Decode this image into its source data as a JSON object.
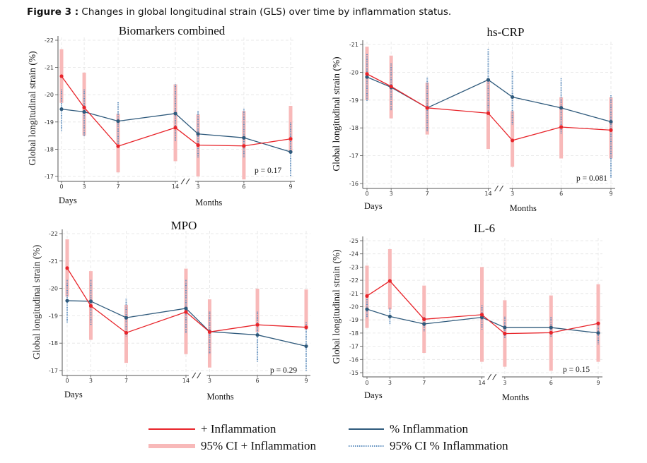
{
  "figure_caption": {
    "label": "Figure 3 :",
    "text": " Changes in global longitudinal strain (GLS) over time by inflammation status."
  },
  "colors": {
    "inflammation_line": "#e8242a",
    "inflammation_ci": "#f8b9b9",
    "no_inflammation_line": "#2f5a7c",
    "no_inflammation_ci": "#5f8fbf",
    "grid": "#e4e4e4"
  },
  "legend": {
    "items": [
      {
        "label": "+ Inflammation",
        "style": "solid-red-line"
      },
      {
        "label": "95% CI + Inflammation",
        "style": "thick-pink-band"
      },
      {
        "label": "% Inflammation",
        "style": "solid-blue-line"
      },
      {
        "label": "95% CI % Inflammation",
        "style": "dotted-blue-line"
      }
    ]
  },
  "chart_data": [
    {
      "type": "line",
      "title": "Biomarkers combined",
      "ylabel": "Global longitudinal strain (%)",
      "ylim": [
        -22,
        -17
      ],
      "yticks": [
        -22,
        -21,
        -20,
        -19,
        -18,
        -17
      ],
      "y_inverted": true,
      "grid": true,
      "xtick_labels": [
        "0",
        "3",
        "7",
        "14",
        "3",
        "6",
        "9"
      ],
      "xgroup_labels": [
        "Days",
        "Months"
      ],
      "axis_break": "//",
      "annotation": "p = 0.17",
      "series": [
        {
          "name": "+ Inflammation",
          "values": [
            -20.68,
            -19.53,
            -18.11,
            -18.79,
            -18.15,
            -18.12,
            -18.38
          ],
          "ci": [
            [
              -21.67,
              -19.7
            ],
            [
              -20.81,
              -18.5
            ],
            [
              -19.3,
              -17.15
            ],
            [
              -20.38,
              -17.56
            ],
            [
              -19.28,
              -17.0
            ],
            [
              -19.4,
              -16.89
            ],
            [
              -19.59,
              -17.86
            ]
          ]
        },
        {
          "name": "% Inflammation",
          "values": [
            -19.47,
            -19.37,
            -19.03,
            -19.31,
            -18.56,
            -18.42,
            -17.9
          ],
          "ci": [
            [
              -20.19,
              -18.66
            ],
            [
              -20.19,
              -18.48
            ],
            [
              -19.72,
              -18.12
            ],
            [
              -20.38,
              -18.29
            ],
            [
              -19.41,
              -17.69
            ],
            [
              -19.48,
              -17.69
            ],
            [
              -18.98,
              -17.0
            ]
          ]
        }
      ]
    },
    {
      "type": "line",
      "title": "hs-CRP",
      "ylabel": "Global longitudinal strain (%)",
      "ylim": [
        -21,
        -16
      ],
      "yticks": [
        -21,
        -20,
        -19,
        -18,
        -17,
        -16
      ],
      "y_inverted": true,
      "grid": true,
      "xtick_labels": [
        "0",
        "3",
        "7",
        "14",
        "3",
        "6",
        "9"
      ],
      "xgroup_labels": [
        "Days",
        "Months"
      ],
      "axis_break": "//",
      "annotation": "p = 0.081",
      "series": [
        {
          "name": "+ Inflammation",
          "values": [
            -19.94,
            -19.49,
            -18.72,
            -18.53,
            -17.55,
            -18.03,
            -17.92
          ],
          "ci": [
            [
              -20.92,
              -19.0
            ],
            [
              -20.6,
              -18.34
            ],
            [
              -19.63,
              -17.76
            ],
            [
              -19.7,
              -17.24
            ],
            [
              -18.6,
              -16.6
            ],
            [
              -19.1,
              -16.9
            ],
            [
              -19.1,
              -16.9
            ]
          ]
        },
        {
          "name": "% Inflammation",
          "values": [
            -19.83,
            -19.46,
            -18.72,
            -19.73,
            -19.11,
            -18.72,
            -18.22
          ],
          "ci": [
            [
              -20.65,
              -18.97
            ],
            [
              -20.31,
              -18.62
            ],
            [
              -19.8,
              -17.86
            ],
            [
              -20.83,
              -18.6
            ],
            [
              -20.04,
              -18.1
            ],
            [
              -19.78,
              -17.77
            ],
            [
              -19.17,
              -16.21
            ]
          ]
        }
      ]
    },
    {
      "type": "line",
      "title": "MPO",
      "ylabel": "Global longitudinal strain (%)",
      "ylim": [
        -22,
        -17
      ],
      "yticks": [
        -22,
        -21,
        -20,
        -19,
        -18,
        -17
      ],
      "y_inverted": true,
      "grid": true,
      "xtick_labels": [
        "0",
        "3",
        "7",
        "14",
        "3",
        "6",
        "9"
      ],
      "xgroup_labels": [
        "Days",
        "Months"
      ],
      "axis_break": "//",
      "annotation": "p = 0.29",
      "series": [
        {
          "name": "+ Inflammation",
          "values": [
            -20.74,
            -19.36,
            -18.38,
            -19.14,
            -18.41,
            -18.67,
            -18.58
          ],
          "ci": [
            [
              -21.79,
              -19.7
            ],
            [
              -20.63,
              -18.12
            ],
            [
              -19.4,
              -17.28
            ],
            [
              -20.72,
              -17.6
            ],
            [
              -19.6,
              -17.11
            ],
            [
              -19.99,
              -18.4
            ],
            [
              -19.96,
              -18.5
            ]
          ]
        },
        {
          "name": "% Inflammation",
          "values": [
            -19.55,
            -19.53,
            -18.93,
            -19.27,
            -18.42,
            -18.3,
            -17.89
          ],
          "ci": [
            [
              -20.31,
              -18.74
            ],
            [
              -20.31,
              -18.65
            ],
            [
              -19.62,
              -18.25
            ],
            [
              -20.31,
              -18.37
            ],
            [
              -19.15,
              -17.6
            ],
            [
              -19.15,
              -17.3
            ],
            [
              -18.76,
              -17.0
            ]
          ]
        }
      ]
    },
    {
      "type": "line",
      "title": "IL-6",
      "ylabel": "Global longitudinal strain (%)",
      "ylim": [
        -25,
        -15
      ],
      "yticks": [
        -25,
        -24,
        -23,
        -22,
        -21,
        -20,
        -19,
        -18,
        -17,
        -16,
        -15
      ],
      "y_inverted": true,
      "grid": true,
      "xtick_labels": [
        "0",
        "3",
        "7",
        "14",
        "3",
        "6",
        "9"
      ],
      "xgroup_labels": [
        "Days",
        "Months"
      ],
      "axis_break": "//",
      "annotation": "p = 0.15",
      "series": [
        {
          "name": "+ Inflammation",
          "values": [
            -20.81,
            -21.95,
            -19.05,
            -19.39,
            -17.96,
            -18.03,
            -18.73
          ],
          "ci": [
            [
              -23.11,
              -18.39
            ],
            [
              -24.36,
              -19.8
            ],
            [
              -21.6,
              -16.5
            ],
            [
              -23.0,
              -15.82
            ],
            [
              -20.49,
              -15.45
            ],
            [
              -20.85,
              -15.14
            ],
            [
              -21.7,
              -15.82
            ]
          ]
        },
        {
          "name": "% Inflammation",
          "values": [
            -19.81,
            -19.26,
            -18.69,
            -19.19,
            -18.42,
            -18.42,
            -18.01
          ],
          "ci": [
            [
              -20.58,
              -19.15
            ],
            [
              -19.92,
              -18.62
            ],
            [
              -19.21,
              -18.14
            ],
            [
              -20.1,
              -18.26
            ],
            [
              -19.24,
              -17.6
            ],
            [
              -19.21,
              -17.69
            ],
            [
              -18.62,
              -17.16
            ]
          ]
        }
      ]
    }
  ]
}
